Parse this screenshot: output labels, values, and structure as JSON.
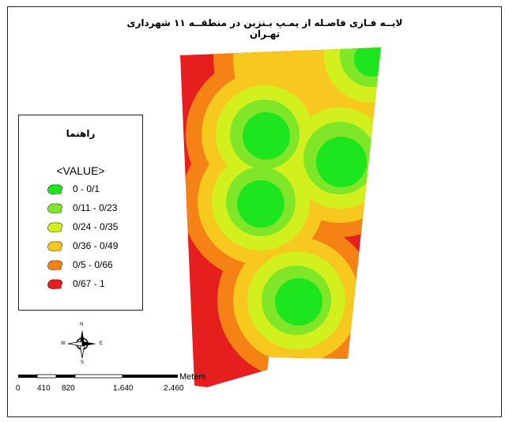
{
  "map": {
    "title": "لایــه فـازی فاصـله از پمـپ بـنزین در منطقــه ۱۱ شهرداری تهـران"
  },
  "legend": {
    "title": "راهنما",
    "header": "<VALUE>",
    "classes": [
      {
        "label": "0 - 0/1",
        "color": "#1ee61e"
      },
      {
        "label": "0/11 - 0/23",
        "color": "#7fe628"
      },
      {
        "label": "0/24 - 0/35",
        "color": "#d2f01e"
      },
      {
        "label": "0/36 - 0/49",
        "color": "#f7c81e"
      },
      {
        "label": "0/5 - 0/66",
        "color": "#f58214"
      },
      {
        "label": "0/67 - 1",
        "color": "#e61e1e"
      }
    ]
  },
  "north_arrow": {
    "n": "N",
    "s": "S",
    "e": "E",
    "w": "W"
  },
  "scale_bar": {
    "unit": "Meters",
    "ticks": [
      "0",
      "410",
      "820",
      "1،640",
      "2،460"
    ]
  }
}
